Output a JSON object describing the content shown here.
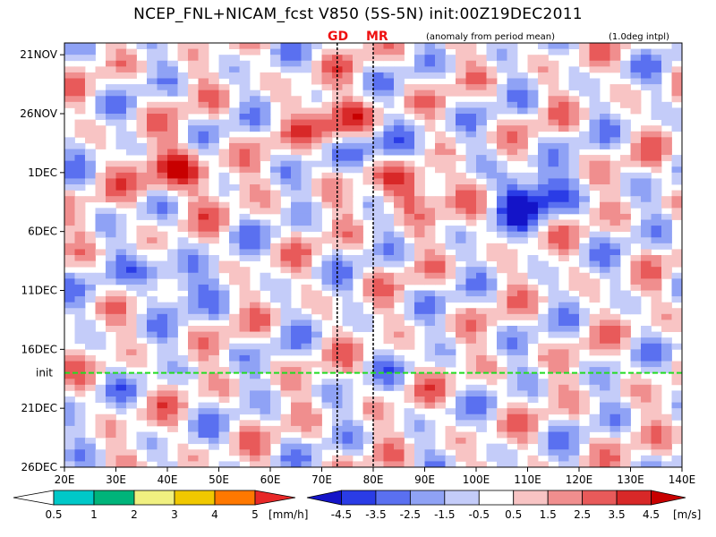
{
  "chart_data": {
    "type": "heatmap",
    "title": "NCEP_FNL+NICAM_fcst V850 (5S-5N) init:00Z19DEC2011",
    "subtitle": "(anomaly from period mean)",
    "interp_note": "(1.0deg intpl)",
    "markers": [
      {
        "label": "GD",
        "lon": 73
      },
      {
        "label": "MR",
        "lon": 80
      }
    ],
    "init_line": {
      "label": "init",
      "day": 28
    },
    "x_range": [
      "20E",
      "140E"
    ],
    "y_range": [
      "20NOV2011",
      "26DEC2011"
    ],
    "x_ticks": [
      "20E",
      "30E",
      "40E",
      "50E",
      "60E",
      "70E",
      "80E",
      "90E",
      "100E",
      "110E",
      "120E",
      "130E",
      "140E"
    ],
    "y_ticks": [
      "21NOV",
      "26NOV",
      "1DEC",
      "6DEC",
      "11DEC",
      "16DEC",
      "21DEC",
      "26DEC"
    ],
    "v850_colorbar": {
      "unit": "[m/s]",
      "levels": [
        "-4.5",
        "-3.5",
        "-2.5",
        "-1.5",
        "-0.5",
        "0.5",
        "1.5",
        "2.5",
        "3.5",
        "4.5"
      ],
      "colors": [
        "#1414c8",
        "#2a3ce6",
        "#5a70f0",
        "#8fa2f5",
        "#c4ccf9",
        "#ffffff",
        "#f8c4c4",
        "#f08e8e",
        "#e85a5a",
        "#d82828",
        "#c80000"
      ]
    },
    "precip_colorbar": {
      "unit": "[mm/h]",
      "levels": [
        "0.5",
        "1",
        "2",
        "3",
        "4",
        "5"
      ],
      "colors": [
        "#ffffff",
        "#00c8c8",
        "#00b47a",
        "#f0f080",
        "#f0c800",
        "#ff7800",
        "#e82828"
      ]
    },
    "features": [
      {
        "name": "positive anomaly",
        "lon": 42,
        "date": "1DEC",
        "value": 4
      },
      {
        "name": "positive anomaly",
        "lon": 75,
        "date": "27NOV",
        "value": 4.5
      },
      {
        "name": "positive anomaly",
        "lon": 88,
        "date": "2DEC",
        "value": 4.5
      },
      {
        "name": "negative anomaly",
        "lon": 82,
        "date": "29NOV",
        "value": -4.5
      },
      {
        "name": "negative anomaly",
        "lon": 110,
        "date": "3DEC",
        "value": -4.5
      },
      {
        "name": "negative anomaly",
        "lon": 40,
        "date": "10DEC",
        "value": -3
      }
    ]
  }
}
